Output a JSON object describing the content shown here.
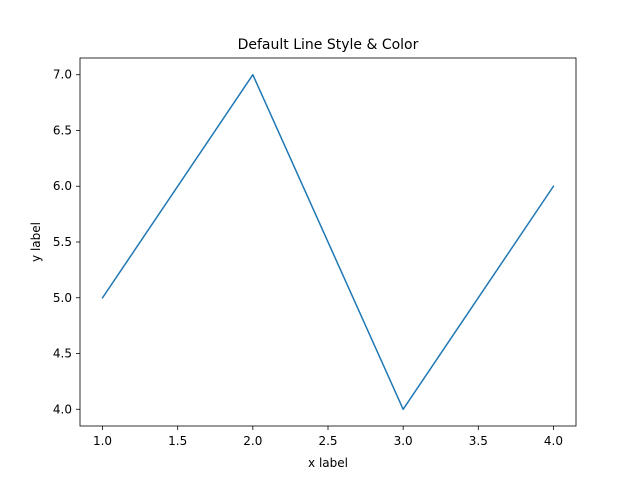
{
  "chart_data": {
    "type": "line",
    "title": "Default Line Style & Color",
    "xlabel": "x label",
    "ylabel": "y label",
    "x": [
      1,
      2,
      3,
      4
    ],
    "series": [
      {
        "values": [
          5,
          7,
          4,
          6
        ],
        "color": "#1f77b4"
      }
    ],
    "xlim": [
      0.85,
      4.15
    ],
    "ylim": [
      3.85,
      7.15
    ],
    "xticks": [
      1.0,
      1.5,
      2.0,
      2.5,
      3.0,
      3.5,
      4.0
    ],
    "xtick_labels": [
      "1.0",
      "1.5",
      "2.0",
      "2.5",
      "3.0",
      "3.5",
      "4.0"
    ],
    "yticks": [
      4.0,
      4.5,
      5.0,
      5.5,
      6.0,
      6.5,
      7.0
    ],
    "ytick_labels": [
      "4.0",
      "4.5",
      "5.0",
      "5.5",
      "6.0",
      "6.5",
      "7.0"
    ],
    "grid": false,
    "legend": "none"
  }
}
